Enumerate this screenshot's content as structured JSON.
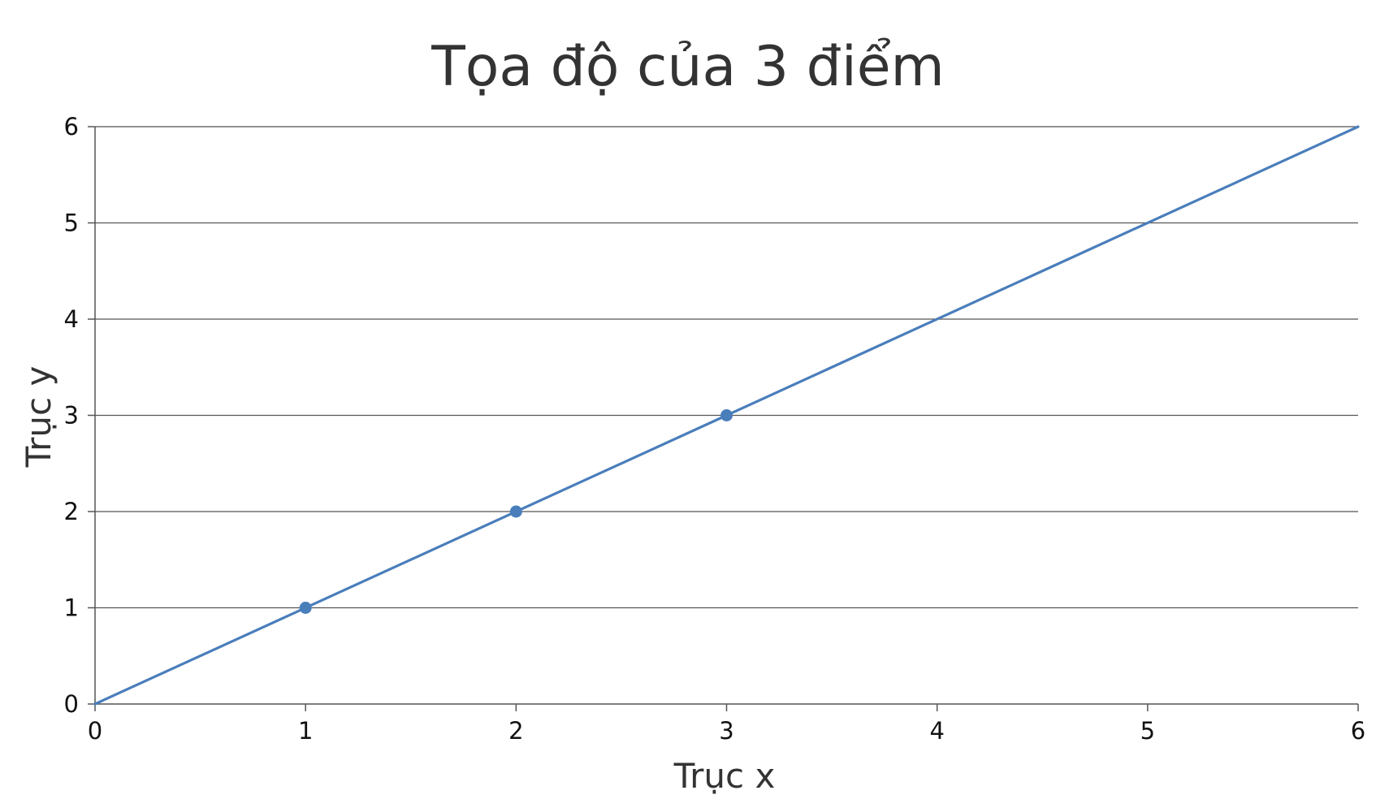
{
  "chart_data": {
    "type": "scatter",
    "title": "Tọa độ của 3 điểm",
    "xlabel": "Trục x",
    "ylabel": "Trục y",
    "xlim": [
      0,
      6
    ],
    "ylim": [
      0,
      6
    ],
    "x_ticks": [
      0,
      1,
      2,
      3,
      4,
      5,
      6
    ],
    "y_ticks": [
      0,
      1,
      2,
      3,
      4,
      5,
      6
    ],
    "grid": "horizontal",
    "legend": "none",
    "series": [
      {
        "color": "#4a7ebb",
        "points": [
          {
            "x": 1,
            "y": 1
          },
          {
            "x": 2,
            "y": 2
          },
          {
            "x": 3,
            "y": 3
          }
        ]
      }
    ],
    "lines": [
      {
        "color": "#4a7ebb",
        "from": {
          "x": 0,
          "y": 0
        },
        "to": {
          "x": 6,
          "y": 6
        }
      }
    ]
  }
}
